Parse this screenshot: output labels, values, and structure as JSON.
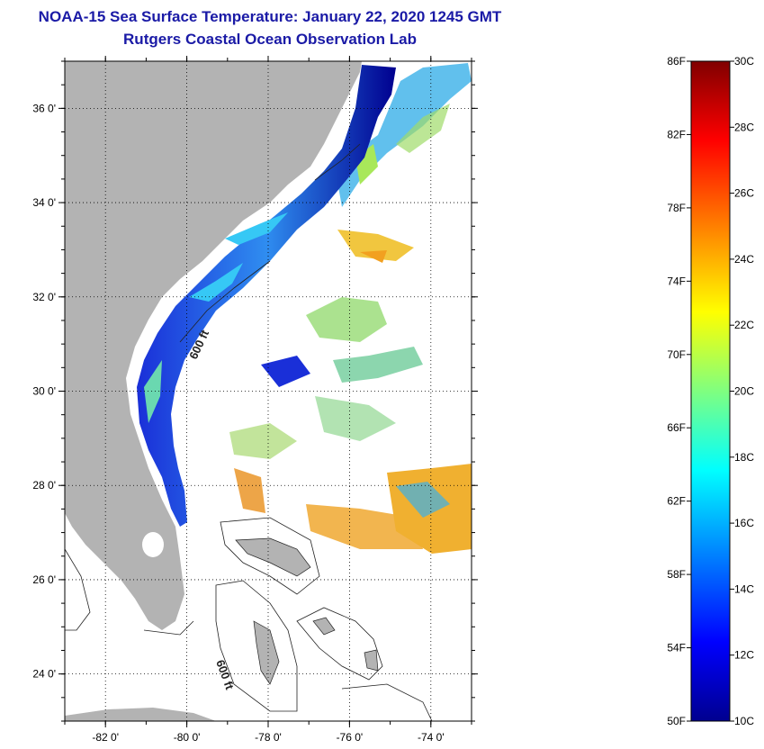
{
  "header": {
    "title": "NOAA-15 Sea Surface Temperature:  January 22, 2020 1245 GMT",
    "subtitle": "Rutgers Coastal Ocean Observation Lab"
  },
  "map": {
    "lon_ticks": [
      {
        "value": -82,
        "label": "-82 0'"
      },
      {
        "value": -80,
        "label": "-80 0'"
      },
      {
        "value": -78,
        "label": "-78 0'"
      },
      {
        "value": -76,
        "label": "-76 0'"
      },
      {
        "value": -74,
        "label": "-74 0'"
      }
    ],
    "lat_ticks": [
      {
        "value": 36,
        "label": "36 0'"
      },
      {
        "value": 34,
        "label": "34 0'"
      },
      {
        "value": 32,
        "label": "32 0'"
      },
      {
        "value": 30,
        "label": "30 0'"
      },
      {
        "value": 28,
        "label": "28 0'"
      },
      {
        "value": 26,
        "label": "26 0'"
      },
      {
        "value": 24,
        "label": "24 0'"
      }
    ],
    "lon_range": [
      -83,
      -73
    ],
    "lat_range": [
      23,
      37
    ],
    "contour_labels": [
      "600 ft",
      "600 ft"
    ],
    "land_color": "#b3b3b3"
  },
  "colorbar": {
    "f_labels": [
      "86F",
      "82F",
      "78F",
      "74F",
      "70F",
      "66F",
      "62F",
      "58F",
      "54F",
      "50F"
    ],
    "c_labels": [
      "30C",
      "28C",
      "26C",
      "24C",
      "22C",
      "20C",
      "18C",
      "16C",
      "14C",
      "12C",
      "10C"
    ],
    "range_f": [
      50,
      86
    ],
    "range_c": [
      10,
      30
    ],
    "colors": [
      "#00008f",
      "#0000ff",
      "#00ffff",
      "#ffff00",
      "#ff0000",
      "#800000"
    ]
  }
}
